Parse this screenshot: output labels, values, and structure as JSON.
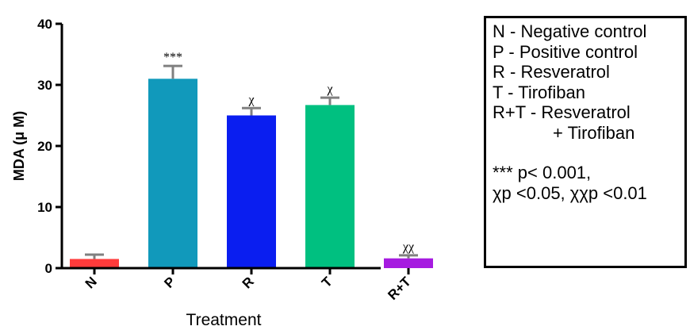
{
  "chart_data": {
    "type": "bar",
    "categories": [
      "N",
      "P",
      "R",
      "T",
      "R+T"
    ],
    "values": [
      1.5,
      31,
      25,
      26.7,
      1.6
    ],
    "errors": [
      0.7,
      2.1,
      1.2,
      1.2,
      0.5
    ],
    "significance": [
      "",
      "***",
      "χ",
      "χ",
      "χχ"
    ],
    "colors": [
      "#ff3b3b",
      "#1199bb",
      "#0a1ef0",
      "#00c080",
      "#a61be0"
    ],
    "error_color": "#808080",
    "xlabel": "Treatment",
    "ylabel": "MDA (μ M)",
    "ylim": [
      0,
      40
    ],
    "yticks": [
      0,
      10,
      20,
      30,
      40
    ],
    "grid": false,
    "legend": {
      "placement": "right",
      "entries": [
        "N - Negative control",
        "P - Positive control",
        "R - Resveratrol",
        "T - Tirofiban",
        "R+T - Resveratrol",
        "+ Tirofiban"
      ],
      "notes": [
        "*** p< 0.001,",
        "χp <0.05, χχp <0.01"
      ]
    }
  }
}
